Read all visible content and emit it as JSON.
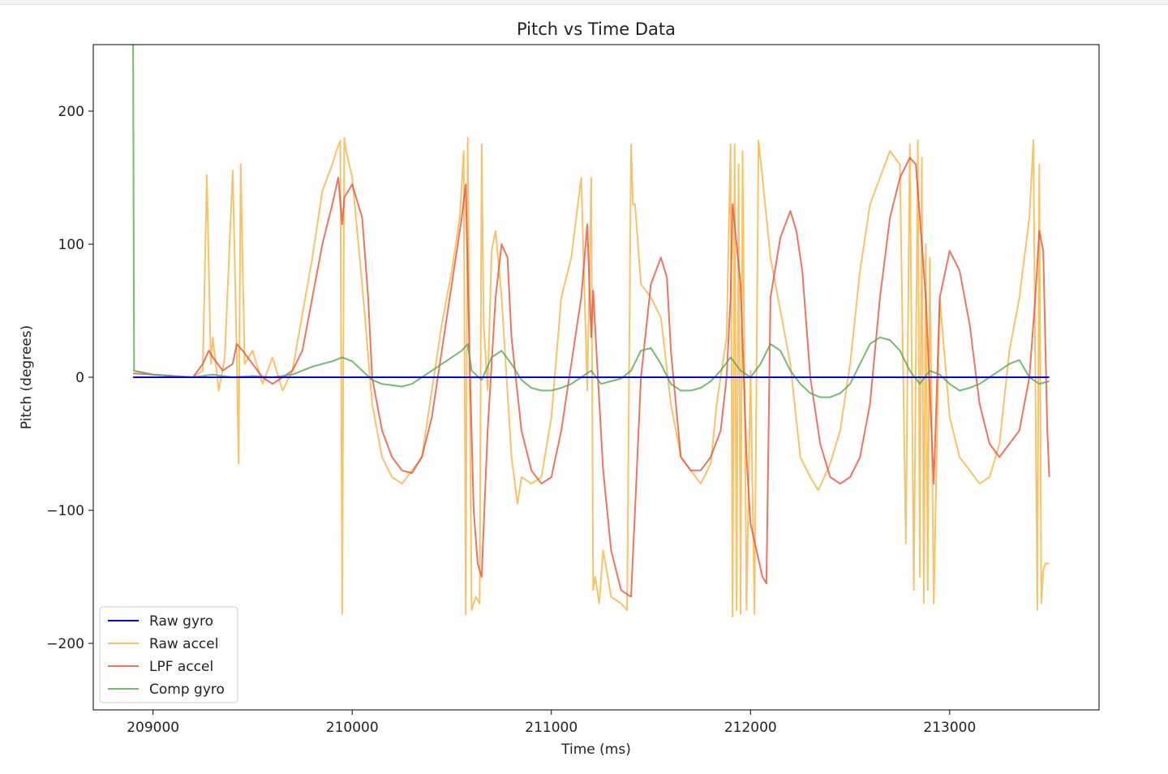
{
  "chart_data": {
    "type": "line",
    "title": "Pitch vs Time Data",
    "xlabel": "Time (ms)",
    "ylabel": "Pitch (degrees)",
    "xlim": [
      208700,
      213750
    ],
    "ylim": [
      -250,
      250
    ],
    "xticks": [
      209000,
      210000,
      211000,
      212000,
      213000
    ],
    "xtick_labels": [
      "209000",
      "210000",
      "211000",
      "212000",
      "213000"
    ],
    "yticks": [
      200,
      100,
      0,
      -100,
      -200
    ],
    "ytick_labels": [
      "200",
      "100",
      "0",
      "−100",
      "−200"
    ],
    "grid": false,
    "legend_position": "lower-left",
    "series": [
      {
        "name": "Raw gyro",
        "color": "#0000ff",
        "x": [
          208900,
          213500
        ],
        "y": [
          0,
          0
        ]
      },
      {
        "name": "Raw accel",
        "color": "#f5b342",
        "x": [
          208900,
          209000,
          209200,
          209250,
          209270,
          209290,
          209300,
          209330,
          209360,
          209400,
          209420,
          209430,
          209440,
          209460,
          209500,
          209550,
          209600,
          209650,
          209700,
          209800,
          209850,
          209900,
          209920,
          209940,
          209950,
          209960,
          209970,
          210000,
          210050,
          210100,
          210150,
          210200,
          210250,
          210300,
          210350,
          210400,
          210450,
          210500,
          210540,
          210560,
          210570,
          210580,
          210600,
          210620,
          210640,
          210650,
          210660,
          210680,
          210700,
          210720,
          210750,
          210800,
          210830,
          210850,
          210900,
          210950,
          211000,
          211050,
          211100,
          211150,
          211180,
          211200,
          211210,
          211220,
          211240,
          211260,
          211300,
          211350,
          211380,
          211400,
          211410,
          211420,
          211450,
          211500,
          211550,
          211600,
          211650,
          211700,
          211750,
          211800,
          211830,
          211860,
          211880,
          211900,
          211910,
          211920,
          211930,
          211940,
          211950,
          211960,
          211980,
          212000,
          212020,
          212040,
          212060,
          212080,
          212100,
          212150,
          212200,
          212250,
          212300,
          212340,
          212370,
          212400,
          212450,
          212500,
          212550,
          212600,
          212650,
          212700,
          212750,
          212780,
          212800,
          212820,
          212840,
          212850,
          212860,
          212870,
          212880,
          212890,
          212900,
          212920,
          212950,
          213000,
          213050,
          213100,
          213150,
          213200,
          213250,
          213300,
          213350,
          213400,
          213420,
          213440,
          213450,
          213460,
          213470,
          213480,
          213500
        ],
        "y": [
          5,
          2,
          0,
          5,
          152,
          10,
          30,
          -10,
          15,
          155,
          20,
          -65,
          160,
          10,
          20,
          -5,
          15,
          -10,
          5,
          90,
          140,
          160,
          170,
          178,
          -178,
          180,
          170,
          150,
          70,
          -20,
          -60,
          -75,
          -80,
          -70,
          -60,
          -10,
          40,
          80,
          120,
          170,
          -178,
          180,
          -175,
          -165,
          -170,
          175,
          40,
          -10,
          95,
          110,
          60,
          -60,
          -95,
          -75,
          -80,
          -75,
          -30,
          60,
          90,
          150,
          -10,
          150,
          -160,
          -150,
          -170,
          -130,
          -165,
          -170,
          -175,
          175,
          130,
          130,
          70,
          60,
          45,
          -20,
          -60,
          -70,
          -80,
          -65,
          -20,
          10,
          30,
          175,
          -180,
          175,
          -175,
          160,
          -178,
          170,
          -175,
          5,
          -178,
          178,
          150,
          120,
          90,
          50,
          10,
          -60,
          -75,
          -85,
          -75,
          -65,
          -40,
          10,
          80,
          130,
          150,
          170,
          160,
          -125,
          175,
          -160,
          178,
          -150,
          165,
          -170,
          100,
          -160,
          90,
          -170,
          60,
          -30,
          -60,
          -70,
          -80,
          -75,
          -50,
          20,
          60,
          120,
          178,
          -175,
          160,
          -170,
          -145,
          -140,
          -140
        ]
      },
      {
        "name": "LPF accel",
        "color": "#e8513a",
        "x": [
          208900,
          209000,
          209100,
          209200,
          209250,
          209280,
          209300,
          209350,
          209400,
          209420,
          209450,
          209500,
          209550,
          209600,
          209650,
          209700,
          209750,
          209800,
          209850,
          209900,
          209930,
          209950,
          209960,
          210000,
          210050,
          210080,
          210100,
          210150,
          210200,
          210250,
          210300,
          210350,
          210400,
          210450,
          210500,
          210550,
          210570,
          210590,
          210610,
          210630,
          210650,
          210680,
          210720,
          210750,
          210780,
          210800,
          210850,
          210900,
          210950,
          211000,
          211050,
          211100,
          211150,
          211180,
          211200,
          211210,
          211230,
          211260,
          211300,
          211350,
          211400,
          211420,
          211450,
          211500,
          211550,
          211580,
          211600,
          211650,
          211700,
          211750,
          211800,
          211850,
          211880,
          211900,
          211910,
          211930,
          211950,
          211980,
          212000,
          212030,
          212060,
          212080,
          212100,
          212150,
          212200,
          212230,
          212260,
          212300,
          212350,
          212400,
          212450,
          212500,
          212550,
          212600,
          212650,
          212700,
          212750,
          212800,
          212830,
          212840,
          212860,
          212880,
          212900,
          212920,
          212950,
          213000,
          213050,
          213100,
          213150,
          213200,
          213250,
          213300,
          213350,
          213400,
          213430,
          213450,
          213470,
          213490,
          213500
        ],
        "y": [
          3,
          2,
          1,
          0,
          10,
          20,
          15,
          5,
          10,
          25,
          20,
          10,
          0,
          -5,
          0,
          5,
          20,
          60,
          100,
          130,
          150,
          115,
          135,
          145,
          120,
          60,
          0,
          -40,
          -60,
          -70,
          -72,
          -60,
          -30,
          20,
          70,
          120,
          145,
          10,
          -100,
          -140,
          -150,
          -40,
          60,
          100,
          90,
          30,
          -40,
          -70,
          -80,
          -75,
          -40,
          10,
          60,
          115,
          30,
          65,
          10,
          -70,
          -130,
          -160,
          -165,
          -100,
          0,
          70,
          90,
          75,
          20,
          -60,
          -70,
          -70,
          -60,
          -40,
          0,
          60,
          130,
          100,
          70,
          -60,
          -110,
          -130,
          -150,
          -155,
          60,
          105,
          125,
          110,
          80,
          0,
          -50,
          -75,
          -80,
          -75,
          -60,
          -20,
          60,
          120,
          150,
          165,
          160,
          140,
          100,
          60,
          -10,
          -80,
          60,
          95,
          80,
          40,
          -20,
          -50,
          -60,
          -50,
          -40,
          0,
          60,
          110,
          95,
          -40,
          -75
        ]
      },
      {
        "name": "Comp gyro",
        "color": "#55a84d",
        "x": [
          208900,
          208900,
          208905,
          209000,
          209100,
          209200,
          209300,
          209400,
          209500,
          209600,
          209700,
          209800,
          209900,
          209950,
          210000,
          210050,
          210100,
          210150,
          210200,
          210250,
          210300,
          210350,
          210400,
          210450,
          210500,
          210550,
          210580,
          210600,
          210650,
          210700,
          210750,
          210800,
          210850,
          210900,
          210950,
          211000,
          211050,
          211100,
          211150,
          211200,
          211250,
          211300,
          211350,
          211400,
          211450,
          211500,
          211550,
          211600,
          211650,
          211700,
          211750,
          211800,
          211850,
          211900,
          211950,
          212000,
          212050,
          212100,
          212150,
          212200,
          212250,
          212300,
          212350,
          212400,
          212450,
          212500,
          212550,
          212600,
          212650,
          212700,
          212750,
          212800,
          212850,
          212900,
          212950,
          213000,
          213050,
          213100,
          213150,
          213200,
          213250,
          213300,
          213350,
          213400,
          213450,
          213500
        ],
        "y": [
          250,
          250,
          5,
          2,
          1,
          0,
          2,
          0,
          1,
          0,
          2,
          8,
          12,
          15,
          12,
          5,
          -2,
          -5,
          -6,
          -7,
          -5,
          0,
          5,
          10,
          15,
          20,
          25,
          5,
          -2,
          15,
          20,
          10,
          -2,
          -8,
          -10,
          -10,
          -8,
          -5,
          0,
          5,
          -5,
          -3,
          -1,
          5,
          20,
          22,
          10,
          -5,
          -10,
          -10,
          -8,
          -3,
          5,
          15,
          5,
          0,
          10,
          25,
          20,
          5,
          -5,
          -12,
          -15,
          -15,
          -12,
          -5,
          10,
          25,
          30,
          28,
          20,
          5,
          -5,
          5,
          2,
          -5,
          -10,
          -8,
          -5,
          0,
          5,
          10,
          13,
          0,
          -5,
          -3
        ]
      }
    ]
  }
}
